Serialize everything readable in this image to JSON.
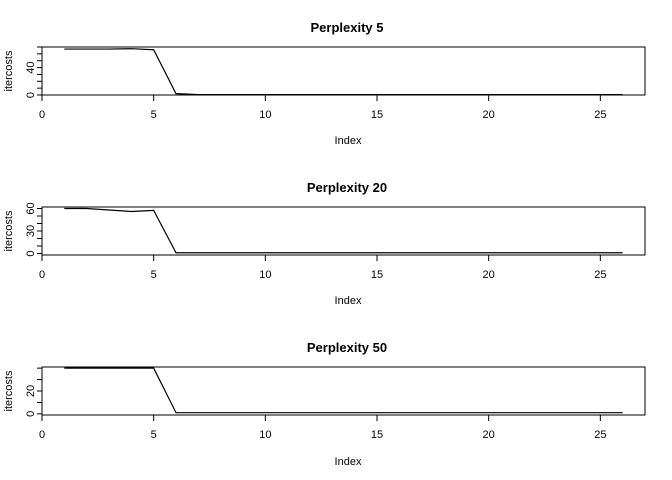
{
  "chart_data": [
    {
      "type": "line",
      "title": "Perplexity 5",
      "xlabel": "Index",
      "ylabel": "itercosts",
      "xlim": [
        0,
        27
      ],
      "ylim": [
        0,
        70
      ],
      "xticks": [
        "0",
        "5",
        "10",
        "15",
        "20",
        "25"
      ],
      "yticks": [
        "0",
        "40"
      ],
      "x": [
        1,
        2,
        3,
        4,
        5,
        6,
        7,
        8,
        9,
        10,
        11,
        12,
        13,
        14,
        15,
        16,
        17,
        18,
        19,
        20,
        21,
        22,
        23,
        24,
        25,
        26
      ],
      "values": [
        67,
        67,
        67,
        67.5,
        66,
        2,
        0.5,
        0.5,
        0.5,
        0.5,
        0.5,
        0.5,
        0.5,
        0.5,
        0.5,
        0.5,
        0.5,
        0.5,
        0.5,
        0.5,
        0.5,
        0.5,
        0.5,
        0.5,
        0.5,
        0.5
      ]
    },
    {
      "type": "line",
      "title": "Perplexity 20",
      "xlabel": "Index",
      "ylabel": "itercosts",
      "xlim": [
        0,
        27
      ],
      "ylim": [
        -2,
        62
      ],
      "xticks": [
        "0",
        "5",
        "10",
        "15",
        "20",
        "25"
      ],
      "yticks": [
        "0",
        "30",
        "60"
      ],
      "x": [
        1,
        2,
        3,
        4,
        5,
        6,
        7,
        8,
        9,
        10,
        11,
        12,
        13,
        14,
        15,
        16,
        17,
        18,
        19,
        20,
        21,
        22,
        23,
        24,
        25,
        26
      ],
      "values": [
        60,
        60,
        58,
        56,
        57.5,
        1,
        1,
        1,
        1,
        1,
        1,
        1,
        1,
        1,
        1,
        1,
        1,
        1,
        1,
        1,
        1,
        1,
        1,
        1,
        1,
        1
      ]
    },
    {
      "type": "line",
      "title": "Perplexity 50",
      "xlabel": "Index",
      "ylabel": "itercosts",
      "xlim": [
        0,
        27
      ],
      "ylim": [
        -1,
        41
      ],
      "xticks": [
        "0",
        "5",
        "10",
        "15",
        "20",
        "25"
      ],
      "yticks": [
        "0",
        "20"
      ],
      "x": [
        1,
        2,
        3,
        4,
        5,
        6,
        7,
        8,
        9,
        10,
        11,
        12,
        13,
        14,
        15,
        16,
        17,
        18,
        19,
        20,
        21,
        22,
        23,
        24,
        25,
        26
      ],
      "values": [
        40,
        40,
        40,
        40,
        40,
        1,
        1,
        1,
        1,
        1,
        1,
        1,
        1,
        1,
        1,
        1,
        1,
        1,
        1,
        1,
        1,
        1,
        1,
        1,
        1,
        1
      ]
    }
  ]
}
